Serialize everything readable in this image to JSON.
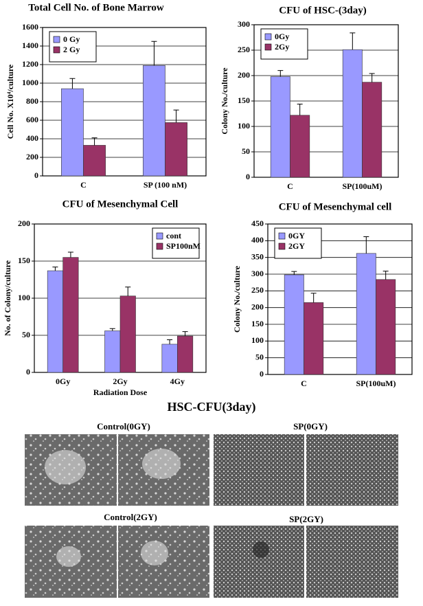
{
  "chart_data": [
    {
      "type": "bar",
      "title": "Total Cell No. of Bone Marrow",
      "y_label": "Cell No. X10⁴/culture",
      "categories": [
        "C",
        "SP (100 nM)"
      ],
      "series": [
        {
          "name": "0 Gy",
          "color": "#9999ff",
          "values": [
            940,
            1190
          ],
          "errors": [
            110,
            260
          ]
        },
        {
          "name": "2 Gy",
          "color": "#993366",
          "values": [
            330,
            575
          ],
          "errors": [
            80,
            135
          ]
        }
      ],
      "ylim": [
        0,
        1600
      ],
      "yticks": [
        0,
        200,
        400,
        600,
        800,
        1000,
        1200,
        1400,
        1600
      ],
      "grid": true,
      "legend": "upper left"
    },
    {
      "type": "bar",
      "title": "CFU of HSC-(3day)",
      "y_label": "Colony No./culture",
      "categories": [
        "C",
        "SP(100uM)"
      ],
      "series": [
        {
          "name": "0Gy",
          "color": "#9999ff",
          "values": [
            198,
            251
          ],
          "errors": [
            12,
            33
          ]
        },
        {
          "name": "2Gy",
          "color": "#993366",
          "values": [
            122,
            187
          ],
          "errors": [
            22,
            17
          ]
        }
      ],
      "ylim": [
        0,
        300
      ],
      "yticks": [
        0,
        50,
        100,
        150,
        200,
        250,
        300
      ],
      "grid": true,
      "legend": "upper left"
    },
    {
      "type": "bar",
      "title": "CFU of Mesenchymal Cell",
      "y_label": "No. of Colony/culture",
      "x_label": "Radiation Dose",
      "categories": [
        "0Gy",
        "2Gy",
        "4Gy"
      ],
      "series": [
        {
          "name": "cont",
          "color": "#9999ff",
          "values": [
            137,
            56,
            38
          ],
          "errors": [
            5,
            3,
            6
          ]
        },
        {
          "name": "SP100nM",
          "color": "#993366",
          "values": [
            155,
            103,
            49
          ],
          "errors": [
            7,
            12,
            6
          ]
        }
      ],
      "ylim": [
        0,
        200
      ],
      "yticks": [
        0,
        50,
        100,
        150,
        200
      ],
      "grid": true,
      "legend": "upper right"
    },
    {
      "type": "bar",
      "title": "CFU of Mesenchymal cell",
      "y_label": "Colony No./culture",
      "categories": [
        "C",
        "SP(100uM)"
      ],
      "series": [
        {
          "name": "0GY",
          "color": "#9999ff",
          "values": [
            298,
            362
          ],
          "errors": [
            10,
            50
          ]
        },
        {
          "name": "2GY",
          "color": "#993366",
          "values": [
            215,
            284
          ],
          "errors": [
            28,
            25
          ]
        }
      ],
      "ylim": [
        0,
        450
      ],
      "yticks": [
        0,
        50,
        100,
        150,
        200,
        250,
        300,
        350,
        400,
        450
      ],
      "grid": true,
      "legend": "upper left"
    }
  ],
  "figure": {
    "title": "HSC-CFU(3day)",
    "panels": [
      "Control(0GY)",
      "SP(0GY)",
      "Control(2GY)",
      "SP(2GY)"
    ]
  }
}
